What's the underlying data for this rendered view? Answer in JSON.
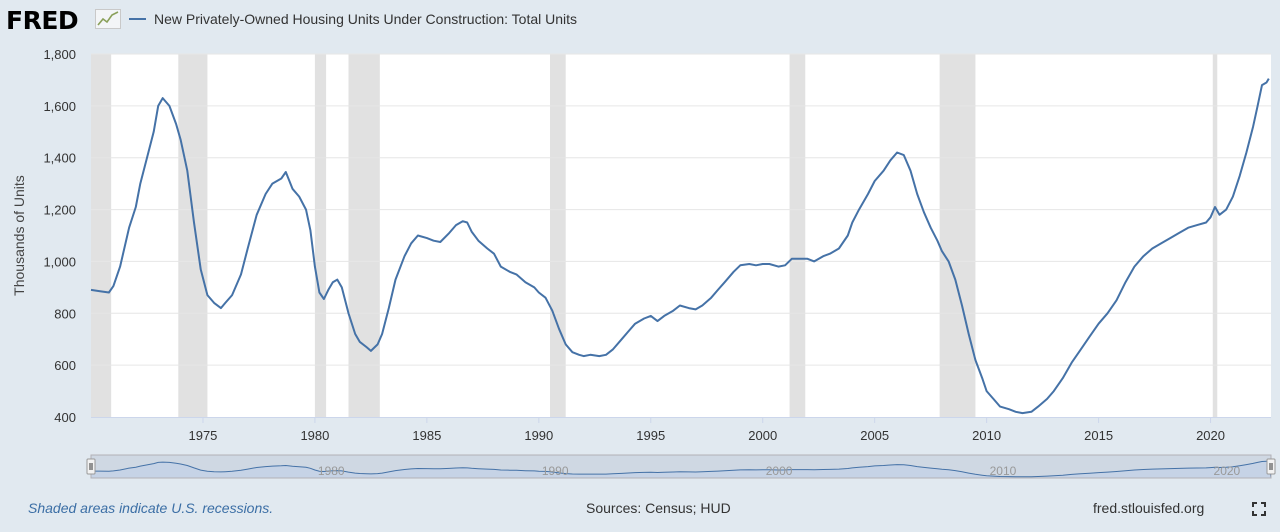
{
  "app": {
    "logo_text": "FRED",
    "source_text": "Sources: Census; HUD",
    "site_text": "fred.stlouisfed.org",
    "recession_note": "Shaded areas indicate U.S. recessions."
  },
  "colors": {
    "line": "#4572a7",
    "recession": "#e1e1e1",
    "grid": "#e6e6e6",
    "background": "#e1e9f0",
    "plot_bg": "#ffffff",
    "navigator_fill": "#c6d3e6"
  },
  "chart_data": {
    "type": "line",
    "title": "",
    "series": [
      {
        "name": "New Privately-Owned Housing Units Under Construction: Total Units",
        "points": [
          [
            1970.0,
            890
          ],
          [
            1970.4,
            885
          ],
          [
            1970.8,
            880
          ],
          [
            1971.0,
            905
          ],
          [
            1971.3,
            980
          ],
          [
            1971.7,
            1130
          ],
          [
            1972.0,
            1210
          ],
          [
            1972.2,
            1300
          ],
          [
            1972.5,
            1400
          ],
          [
            1972.8,
            1500
          ],
          [
            1973.0,
            1600
          ],
          [
            1973.2,
            1630
          ],
          [
            1973.5,
            1600
          ],
          [
            1973.8,
            1530
          ],
          [
            1974.0,
            1470
          ],
          [
            1974.3,
            1350
          ],
          [
            1974.6,
            1150
          ],
          [
            1974.9,
            970
          ],
          [
            1975.2,
            870
          ],
          [
            1975.5,
            840
          ],
          [
            1975.8,
            820
          ],
          [
            1976.0,
            840
          ],
          [
            1976.3,
            870
          ],
          [
            1976.7,
            950
          ],
          [
            1977.0,
            1050
          ],
          [
            1977.4,
            1180
          ],
          [
            1977.8,
            1260
          ],
          [
            1978.1,
            1300
          ],
          [
            1978.5,
            1320
          ],
          [
            1978.7,
            1345
          ],
          [
            1979.0,
            1280
          ],
          [
            1979.3,
            1250
          ],
          [
            1979.6,
            1200
          ],
          [
            1979.8,
            1120
          ],
          [
            1980.0,
            980
          ],
          [
            1980.2,
            880
          ],
          [
            1980.4,
            855
          ],
          [
            1980.6,
            890
          ],
          [
            1980.8,
            920
          ],
          [
            1981.0,
            930
          ],
          [
            1981.2,
            900
          ],
          [
            1981.5,
            800
          ],
          [
            1981.8,
            720
          ],
          [
            1982.0,
            690
          ],
          [
            1982.3,
            670
          ],
          [
            1982.5,
            655
          ],
          [
            1982.8,
            680
          ],
          [
            1983.0,
            720
          ],
          [
            1983.3,
            820
          ],
          [
            1983.6,
            930
          ],
          [
            1984.0,
            1020
          ],
          [
            1984.3,
            1070
          ],
          [
            1984.6,
            1100
          ],
          [
            1985.0,
            1090
          ],
          [
            1985.3,
            1080
          ],
          [
            1985.6,
            1075
          ],
          [
            1986.0,
            1110
          ],
          [
            1986.3,
            1140
          ],
          [
            1986.6,
            1155
          ],
          [
            1986.8,
            1150
          ],
          [
            1987.0,
            1115
          ],
          [
            1987.3,
            1080
          ],
          [
            1987.7,
            1050
          ],
          [
            1988.0,
            1030
          ],
          [
            1988.3,
            980
          ],
          [
            1988.7,
            960
          ],
          [
            1989.0,
            950
          ],
          [
            1989.4,
            920
          ],
          [
            1989.8,
            900
          ],
          [
            1990.0,
            880
          ],
          [
            1990.3,
            860
          ],
          [
            1990.6,
            810
          ],
          [
            1990.9,
            740
          ],
          [
            1991.2,
            680
          ],
          [
            1991.5,
            650
          ],
          [
            1991.8,
            640
          ],
          [
            1992.0,
            635
          ],
          [
            1992.3,
            640
          ],
          [
            1992.7,
            635
          ],
          [
            1993.0,
            640
          ],
          [
            1993.3,
            660
          ],
          [
            1993.7,
            700
          ],
          [
            1994.0,
            730
          ],
          [
            1994.3,
            760
          ],
          [
            1994.7,
            780
          ],
          [
            1995.0,
            790
          ],
          [
            1995.3,
            770
          ],
          [
            1995.6,
            790
          ],
          [
            1996.0,
            810
          ],
          [
            1996.3,
            830
          ],
          [
            1996.7,
            820
          ],
          [
            1997.0,
            815
          ],
          [
            1997.3,
            830
          ],
          [
            1997.7,
            860
          ],
          [
            1998.0,
            890
          ],
          [
            1998.3,
            920
          ],
          [
            1998.7,
            960
          ],
          [
            1999.0,
            985
          ],
          [
            1999.4,
            990
          ],
          [
            1999.7,
            985
          ],
          [
            2000.0,
            990
          ],
          [
            2000.3,
            990
          ],
          [
            2000.7,
            980
          ],
          [
            2001.0,
            985
          ],
          [
            2001.3,
            1010
          ],
          [
            2001.7,
            1010
          ],
          [
            2002.0,
            1010
          ],
          [
            2002.3,
            1000
          ],
          [
            2002.7,
            1020
          ],
          [
            2003.0,
            1030
          ],
          [
            2003.4,
            1050
          ],
          [
            2003.8,
            1100
          ],
          [
            2004.0,
            1150
          ],
          [
            2004.3,
            1200
          ],
          [
            2004.7,
            1260
          ],
          [
            2005.0,
            1310
          ],
          [
            2005.4,
            1350
          ],
          [
            2005.7,
            1390
          ],
          [
            2006.0,
            1420
          ],
          [
            2006.3,
            1410
          ],
          [
            2006.6,
            1350
          ],
          [
            2006.9,
            1260
          ],
          [
            2007.2,
            1190
          ],
          [
            2007.5,
            1130
          ],
          [
            2007.8,
            1080
          ],
          [
            2008.0,
            1040
          ],
          [
            2008.3,
            1000
          ],
          [
            2008.6,
            930
          ],
          [
            2008.9,
            830
          ],
          [
            2009.2,
            720
          ],
          [
            2009.5,
            620
          ],
          [
            2009.8,
            550
          ],
          [
            2010.0,
            500
          ],
          [
            2010.3,
            470
          ],
          [
            2010.6,
            440
          ],
          [
            2011.0,
            430
          ],
          [
            2011.3,
            420
          ],
          [
            2011.6,
            415
          ],
          [
            2012.0,
            420
          ],
          [
            2012.3,
            440
          ],
          [
            2012.7,
            470
          ],
          [
            2013.0,
            500
          ],
          [
            2013.4,
            550
          ],
          [
            2013.8,
            610
          ],
          [
            2014.2,
            660
          ],
          [
            2014.6,
            710
          ],
          [
            2015.0,
            760
          ],
          [
            2015.4,
            800
          ],
          [
            2015.8,
            850
          ],
          [
            2016.2,
            920
          ],
          [
            2016.6,
            980
          ],
          [
            2017.0,
            1020
          ],
          [
            2017.4,
            1050
          ],
          [
            2017.8,
            1070
          ],
          [
            2018.2,
            1090
          ],
          [
            2018.6,
            1110
          ],
          [
            2019.0,
            1130
          ],
          [
            2019.4,
            1140
          ],
          [
            2019.8,
            1150
          ],
          [
            2020.0,
            1170
          ],
          [
            2020.2,
            1210
          ],
          [
            2020.4,
            1180
          ],
          [
            2020.7,
            1200
          ],
          [
            2021.0,
            1250
          ],
          [
            2021.3,
            1330
          ],
          [
            2021.6,
            1420
          ],
          [
            2021.9,
            1520
          ],
          [
            2022.1,
            1600
          ],
          [
            2022.3,
            1680
          ],
          [
            2022.5,
            1690
          ],
          [
            2022.6,
            1705
          ]
        ]
      }
    ],
    "recessions": [
      [
        1969.9,
        1970.9
      ],
      [
        1973.9,
        1975.2
      ],
      [
        1980.0,
        1980.5
      ],
      [
        1981.5,
        1982.9
      ],
      [
        1990.5,
        1991.2
      ],
      [
        2001.2,
        2001.9
      ],
      [
        2007.9,
        2009.5
      ],
      [
        2020.1,
        2020.3
      ]
    ],
    "xlim": [
      1970.0,
      2022.7
    ],
    "ylim": [
      400,
      1800
    ],
    "yticks": [
      400,
      600,
      800,
      1000,
      1200,
      1400,
      1600,
      1800
    ],
    "ytick_labels": [
      "400",
      "600",
      "800",
      "1,000",
      "1,200",
      "1,400",
      "1,600",
      "1,800"
    ],
    "xticks": [
      1975,
      1980,
      1985,
      1990,
      1995,
      2000,
      2005,
      2010,
      2015,
      2020
    ],
    "xtick_labels": [
      "1975",
      "1980",
      "1985",
      "1990",
      "1995",
      "2000",
      "2005",
      "2010",
      "2015",
      "2020"
    ],
    "ylabel": "Thousands of Units",
    "xlabel": "",
    "grid": true,
    "legend_position": "top-left",
    "navigator_labels": [
      "1980",
      "1990",
      "2000",
      "2010",
      "2020"
    ]
  }
}
